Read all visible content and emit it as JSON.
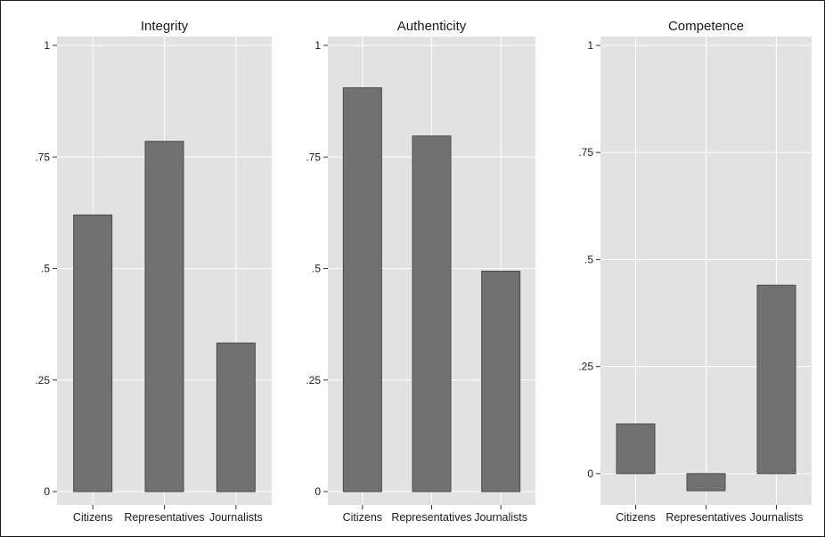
{
  "chart_data": [
    {
      "type": "bar",
      "title": "Integrity",
      "categories": [
        "Citizens",
        "Representatives",
        "Journalists"
      ],
      "values": [
        0.62,
        0.785,
        0.333
      ],
      "ylim": [
        0,
        1
      ],
      "yticks": [
        0,
        0.25,
        0.5,
        0.75,
        1
      ],
      "ytick_labels": [
        "0",
        ".25",
        ".5",
        ".75",
        "1"
      ],
      "xlabel": "",
      "ylabel": "",
      "grid": true
    },
    {
      "type": "bar",
      "title": "Authenticity",
      "categories": [
        "Citizens",
        "Representatives",
        "Journalists"
      ],
      "values": [
        0.905,
        0.797,
        0.494
      ],
      "ylim": [
        0,
        1
      ],
      "yticks": [
        0,
        0.25,
        0.5,
        0.75,
        1
      ],
      "ytick_labels": [
        "0",
        ".25",
        ".5",
        ".75",
        "1"
      ],
      "xlabel": "",
      "ylabel": "",
      "grid": true
    },
    {
      "type": "bar",
      "title": "Competence",
      "categories": [
        "Citizens",
        "Representatives",
        "Journalists"
      ],
      "values": [
        0.116,
        -0.04,
        0.44
      ],
      "ylim": [
        -0.042,
        1
      ],
      "yticks": [
        0,
        0.25,
        0.5,
        0.75,
        1
      ],
      "ytick_labels": [
        "0",
        ".25",
        ".5",
        ".75",
        "1"
      ],
      "xlabel": "",
      "ylabel": "",
      "grid": true
    }
  ],
  "colors": {
    "bar_fill": "#717171",
    "bar_stroke": "#4a4a4a",
    "plot_background": "#e2e2e2",
    "grid": "#ffffff",
    "axis_text": "#1a1a1a"
  }
}
